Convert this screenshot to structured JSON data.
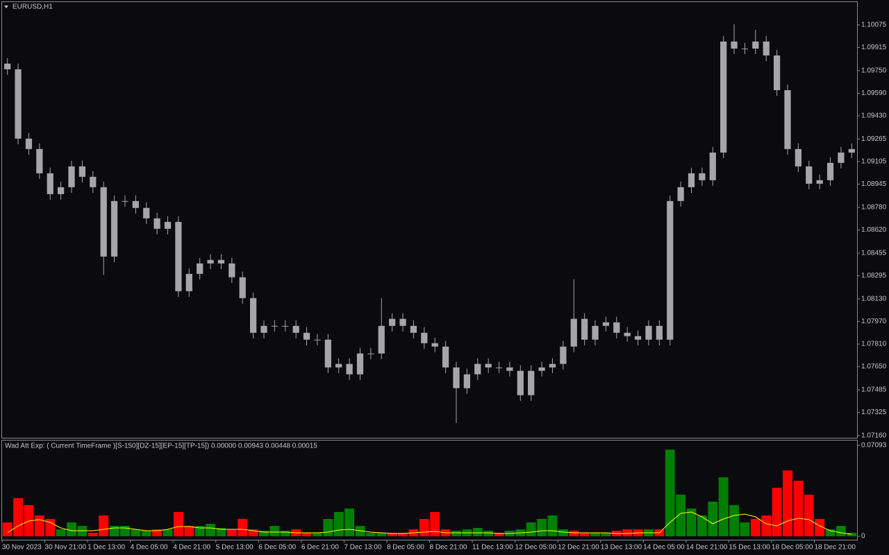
{
  "chart_data": [
    {
      "type": "candlestick",
      "title": "EURUSD,H1",
      "color": "#a6a6aa",
      "categories": [
        "30 Nov 2023",
        null,
        null,
        null,
        "30 Nov 21:00",
        null,
        null,
        null,
        "1 Dec 13:00",
        null,
        null,
        null,
        "4 Dec 05:00",
        null,
        null,
        null,
        "4 Dec 21:00",
        null,
        null,
        null,
        "5 Dec 13:00",
        null,
        null,
        null,
        "6 Dec 05:00",
        null,
        null,
        null,
        "6 Dec 21:00",
        null,
        null,
        null,
        "7 Dec 13:00",
        null,
        null,
        null,
        "8 Dec 05:00",
        null,
        null,
        null,
        "8 Dec 21:00",
        null,
        null,
        null,
        "11 Dec 13:00",
        null,
        null,
        null,
        "12 Dec 05:00",
        null,
        null,
        null,
        "12 Dec 21:00",
        null,
        null,
        null,
        "13 Dec 13:00",
        null,
        null,
        null,
        "14 Dec 05:00",
        null,
        null,
        null,
        "14 Dec 21:00",
        null,
        null,
        null,
        "15 Dec 13:00",
        null,
        null,
        null,
        "18 Dec 05:00",
        null,
        null,
        null,
        "18 Dec 21:00",
        null,
        null,
        null
      ],
      "open": [
        1.098,
        1.0976,
        1.09268,
        1.09194,
        1.09022,
        1.08874,
        1.08923,
        1.09071,
        1.08997,
        1.08923,
        1.08431,
        1.08825,
        1.08825,
        1.08776,
        1.08702,
        1.08628,
        1.08677,
        1.08185,
        1.08308,
        1.08382,
        1.08407,
        1.08382,
        1.08284,
        1.08136,
        1.0789,
        1.07939,
        1.07939,
        1.07939,
        1.0789,
        1.07841,
        1.07841,
        1.07644,
        1.07669,
        1.07595,
        1.07743,
        1.07743,
        1.07939,
        1.07989,
        1.07939,
        1.0789,
        1.07816,
        1.07792,
        1.07644,
        1.07497,
        1.07595,
        1.07669,
        1.07644,
        1.07644,
        1.0762,
        1.07447,
        1.0762,
        1.07644,
        1.07669,
        1.07792,
        1.07989,
        1.07841,
        1.07939,
        1.07964,
        1.0789,
        1.07866,
        1.07841,
        1.07939,
        1.07841,
        1.08825,
        1.08923,
        1.09022,
        1.08973,
        1.09169,
        1.09957,
        1.09907,
        1.09907,
        1.09957,
        1.09858,
        1.09612,
        1.09194,
        1.09071,
        1.08948,
        1.08973,
        1.09096,
        1.09169
      ],
      "high": [
        1.0984,
        1.098,
        1.09308,
        1.09234,
        1.09062,
        1.08963,
        1.09111,
        1.09111,
        1.09037,
        1.08963,
        1.08865,
        1.08865,
        1.08865,
        1.08816,
        1.08742,
        1.08717,
        1.08717,
        1.08348,
        1.08422,
        1.08447,
        1.08447,
        1.08422,
        1.08324,
        1.08176,
        1.07979,
        1.07979,
        1.07979,
        1.07979,
        1.0793,
        1.07881,
        1.07881,
        1.07709,
        1.07709,
        1.07783,
        1.07783,
        1.08136,
        1.08029,
        1.08029,
        1.07979,
        1.0793,
        1.07856,
        1.07832,
        1.07684,
        1.07635,
        1.07709,
        1.07709,
        1.07684,
        1.07684,
        1.0766,
        1.0766,
        1.07684,
        1.07709,
        1.07832,
        1.0827,
        1.08029,
        1.07979,
        1.08004,
        1.08004,
        1.0793,
        1.07906,
        1.07979,
        1.07979,
        1.08865,
        1.08963,
        1.09062,
        1.09062,
        1.09209,
        1.09997,
        1.1008,
        1.09947,
        1.1004,
        1.09997,
        1.09898,
        1.09652,
        1.09234,
        1.09111,
        1.09013,
        1.09136,
        1.09209,
        1.09234
      ],
      "low": [
        1.0972,
        1.09228,
        1.09154,
        1.08982,
        1.08834,
        1.08834,
        1.08883,
        1.08957,
        1.08883,
        1.083,
        1.08391,
        1.08785,
        1.08736,
        1.08662,
        1.08588,
        1.08588,
        1.08145,
        1.08145,
        1.08268,
        1.08342,
        1.08342,
        1.08244,
        1.08096,
        1.0785,
        1.0785,
        1.07899,
        1.07899,
        1.0785,
        1.07801,
        1.07801,
        1.07604,
        1.07604,
        1.07555,
        1.07555,
        1.07703,
        1.07703,
        1.07899,
        1.07899,
        1.0785,
        1.07776,
        1.07752,
        1.07604,
        1.0725,
        1.07457,
        1.07555,
        1.07604,
        1.07604,
        1.0758,
        1.07407,
        1.07407,
        1.0758,
        1.07604,
        1.07629,
        1.07752,
        1.07801,
        1.07801,
        1.07899,
        1.0785,
        1.07826,
        1.07801,
        1.07801,
        1.07801,
        1.07801,
        1.08785,
        1.08883,
        1.08933,
        1.08933,
        1.09129,
        1.09867,
        1.09867,
        1.09867,
        1.09818,
        1.09572,
        1.09154,
        1.09031,
        1.08908,
        1.08908,
        1.08933,
        1.09056,
        1.09129
      ],
      "close": [
        1.0976,
        1.09268,
        1.09194,
        1.09022,
        1.08874,
        1.08923,
        1.09071,
        1.08997,
        1.08923,
        1.08431,
        1.08825,
        1.08825,
        1.08776,
        1.08702,
        1.08628,
        1.08677,
        1.08185,
        1.08308,
        1.08382,
        1.08407,
        1.08382,
        1.08284,
        1.08136,
        1.0789,
        1.07939,
        1.07939,
        1.07939,
        1.0789,
        1.07841,
        1.07841,
        1.07644,
        1.07669,
        1.07595,
        1.07743,
        1.07743,
        1.07939,
        1.07989,
        1.07939,
        1.0789,
        1.07816,
        1.07792,
        1.07644,
        1.07497,
        1.07595,
        1.07669,
        1.07644,
        1.07644,
        1.0762,
        1.07447,
        1.0762,
        1.07644,
        1.07669,
        1.07792,
        1.07989,
        1.07841,
        1.07939,
        1.07964,
        1.0789,
        1.07866,
        1.07841,
        1.07939,
        1.07841,
        1.08825,
        1.08923,
        1.09022,
        1.08973,
        1.09169,
        1.09957,
        1.09907,
        1.09907,
        1.09957,
        1.09858,
        1.09612,
        1.09194,
        1.09071,
        1.08948,
        1.08973,
        1.09096,
        1.09169,
        1.09194
      ],
      "ylim": [
        1.07145,
        1.10237
      ],
      "yticks": [
        {
          "value": 1.10075,
          "label": "1.10075"
        },
        {
          "value": 1.09915,
          "label": "1.09915"
        },
        {
          "value": 1.0975,
          "label": "1.09750"
        },
        {
          "value": 1.0959,
          "label": "1.09590"
        },
        {
          "value": 1.0943,
          "label": "1.09430"
        },
        {
          "value": 1.09265,
          "label": "1.09265"
        },
        {
          "value": 1.09105,
          "label": "1.09105"
        },
        {
          "value": 1.08945,
          "label": "1.08945"
        },
        {
          "value": 1.0878,
          "label": "1.08780"
        },
        {
          "value": 1.0862,
          "label": "1.08620"
        },
        {
          "value": 1.08455,
          "label": "1.08455"
        },
        {
          "value": 1.08295,
          "label": "1.08295"
        },
        {
          "value": 1.0813,
          "label": "1.08130"
        },
        {
          "value": 1.0797,
          "label": "1.07970"
        },
        {
          "value": 1.0781,
          "label": "1.07810"
        },
        {
          "value": 1.0765,
          "label": "1.07650"
        },
        {
          "value": 1.07485,
          "label": "1.07485"
        },
        {
          "value": 1.07325,
          "label": "1.07325"
        },
        {
          "value": 1.0716,
          "label": "1.07160"
        }
      ]
    },
    {
      "type": "bar",
      "title": "Wad Att Exp: ( Current TimeFrame )[S-150][DZ-15][EP-15][TP-15]) 0.00000 0.00943 0.00448 0.00015",
      "values": [
        0.01082,
        0.02976,
        0.02435,
        0.01623,
        0.01353,
        0.00541,
        0.01082,
        0.00812,
        0.00271,
        0.01623,
        0.00812,
        0.00812,
        0.00541,
        0.00433,
        0.00541,
        0.00541,
        0.01894,
        0.00812,
        0.00812,
        0.00974,
        0.00649,
        0.00541,
        0.01353,
        0.00541,
        0.00433,
        0.00812,
        0.00433,
        0.00541,
        0.00271,
        0.00271,
        0.01353,
        0.01894,
        0.02164,
        0.00812,
        0.00271,
        0.00271,
        0.00271,
        0.00271,
        0.00541,
        0.01353,
        0.01894,
        0.00541,
        0.00433,
        0.00541,
        0.00649,
        0.00433,
        0.00271,
        0.00433,
        0.00541,
        0.01082,
        0.01353,
        0.01623,
        0.00541,
        0.00433,
        0.00271,
        0.00271,
        0.00271,
        0.00433,
        0.00541,
        0.00541,
        0.00541,
        0.00541,
        0.06763,
        0.03246,
        0.02164,
        0.01623,
        0.02705,
        0.04599,
        0.02435,
        0.01082,
        0.01353,
        0.01623,
        0.03787,
        0.0514,
        0.04328,
        0.03246,
        0.01353,
        0.00541,
        0.00812,
        0.00271
      ],
      "colors": [
        "#ff0000",
        "#ff0000",
        "#ff0000",
        "#ff0000",
        "#ff0000",
        "#008000",
        "#008000",
        "#008000",
        "#ff0000",
        "#ff0000",
        "#008000",
        "#008000",
        "#008000",
        "#008000",
        "#ff0000",
        "#008000",
        "#ff0000",
        "#ff0000",
        "#008000",
        "#008000",
        "#008000",
        "#ff0000",
        "#ff0000",
        "#ff0000",
        "#008000",
        "#008000",
        "#008000",
        "#ff0000",
        "#ff0000",
        "#008000",
        "#008000",
        "#008000",
        "#008000",
        "#008000",
        "#008000",
        "#008000",
        "#ff0000",
        "#ff0000",
        "#ff0000",
        "#ff0000",
        "#ff0000",
        "#ff0000",
        "#008000",
        "#008000",
        "#008000",
        "#008000",
        "#ff0000",
        "#008000",
        "#008000",
        "#008000",
        "#008000",
        "#008000",
        "#008000",
        "#ff0000",
        "#ff0000",
        "#008000",
        "#008000",
        "#ff0000",
        "#ff0000",
        "#ff0000",
        "#008000",
        "#ff0000",
        "#008000",
        "#008000",
        "#008000",
        "#008000",
        "#008000",
        "#008000",
        "#008000",
        "#008000",
        "#ff0000",
        "#ff0000",
        "#ff0000",
        "#ff0000",
        "#ff0000",
        "#ff0000",
        "#ff0000",
        "#008000",
        "#008000",
        "#008000"
      ],
      "series": [
        {
          "color": "#ffff00",
          "values": [
            0.00271,
            0.00812,
            0.0119,
            0.01298,
            0.01082,
            0.00649,
            0.00433,
            0.00433,
            0.00433,
            0.00541,
            0.00649,
            0.00649,
            0.00541,
            0.00433,
            0.00433,
            0.00541,
            0.00757,
            0.00757,
            0.00649,
            0.00649,
            0.00541,
            0.00541,
            0.00541,
            0.00433,
            0.00325,
            0.00325,
            0.00325,
            0.00271,
            0.00271,
            0.00271,
            0.00325,
            0.00487,
            0.00541,
            0.00433,
            0.00325,
            0.00271,
            0.00216,
            0.00216,
            0.00271,
            0.00325,
            0.00379,
            0.00271,
            0.00271,
            0.00271,
            0.00271,
            0.00271,
            0.00216,
            0.00216,
            0.00271,
            0.00325,
            0.00433,
            0.00433,
            0.00325,
            0.00271,
            0.00271,
            0.00271,
            0.00271,
            0.00216,
            0.00216,
            0.00271,
            0.00271,
            0.00271,
            0.01082,
            0.01785,
            0.01894,
            0.01515,
            0.00974,
            0.01353,
            0.01623,
            0.01731,
            0.01515,
            0.00974,
            0.00812,
            0.0119,
            0.01407,
            0.01298,
            0.00812,
            0.00433,
            0.00271,
            0.00162
          ]
        }
      ],
      "ylim": [
        -0.0027,
        0.0747
      ],
      "yticks": [
        0.07093,
        0
      ]
    }
  ]
}
